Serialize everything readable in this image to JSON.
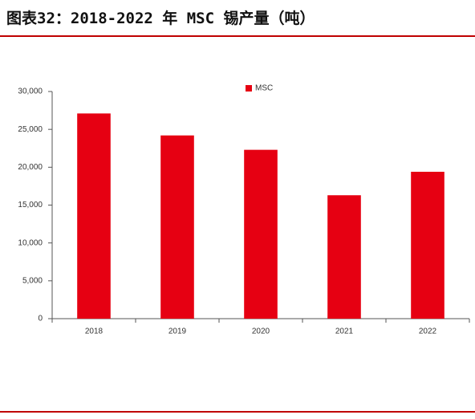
{
  "chart_data": {
    "type": "bar",
    "title": "图表32：2018-2022 年 MSC 锡产量（吨）",
    "categories": [
      "2018",
      "2019",
      "2020",
      "2021",
      "2022"
    ],
    "series": [
      {
        "name": "MSC",
        "color": "#e60012",
        "values": [
          27100,
          24200,
          22300,
          16300,
          19400
        ]
      }
    ],
    "ylim": [
      0,
      30000
    ],
    "yticks": [
      0,
      {
        "value": 5000,
        "label": "5,000"
      },
      {
        "value": 10000,
        "label": "10,000"
      },
      {
        "value": 15000,
        "label": "15,000"
      },
      {
        "value": 20000,
        "label": "20,000"
      },
      {
        "value": 25000,
        "label": "25,000"
      },
      {
        "value": 30000,
        "label": "30,000"
      }
    ],
    "grid": false,
    "legend": "top"
  }
}
